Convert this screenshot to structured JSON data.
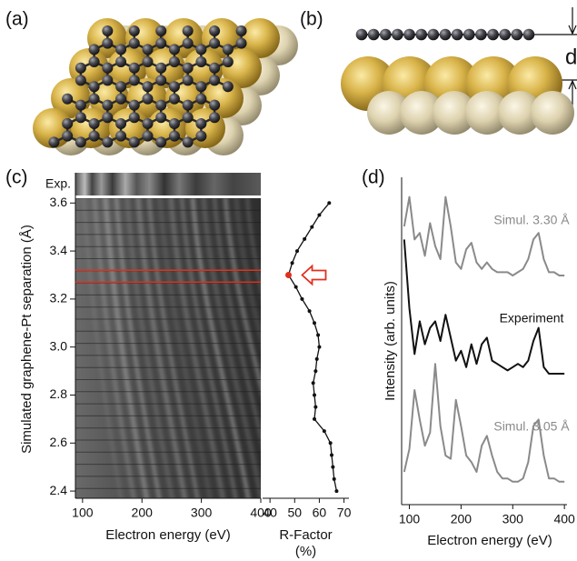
{
  "panels": {
    "a": "(a)",
    "b": "(b)",
    "c": "(c)",
    "d": "(d)"
  },
  "separation_label": "d",
  "chart_data": [
    {
      "type": "heatmap",
      "ylabel": "Simulated graphene-Pt separation (Å)",
      "xlabel": "Electron energy (eV)",
      "row_label": "Exp.",
      "xlim": [
        88,
        400
      ],
      "xticks": [
        100,
        200,
        300,
        400
      ],
      "ylim": [
        2.37,
        3.62
      ],
      "yticks": [
        2.4,
        2.6,
        2.8,
        {
          "value": 3,
          "label": "3.0"
        },
        3.2,
        3.4,
        3.6
      ],
      "marker_lines": [
        3.32,
        3.27
      ],
      "marker_color": "#e0301e"
    },
    {
      "type": "line",
      "xlabel": [
        "R-Factor",
        "(%)"
      ],
      "xlim": [
        37,
        72
      ],
      "xticks": [
        40,
        50,
        60,
        70
      ],
      "ylim": [
        2.37,
        3.62
      ],
      "y": [
        3.6,
        3.55,
        3.5,
        3.45,
        3.4,
        3.35,
        3.3,
        3.25,
        3.2,
        3.15,
        3.1,
        3.05,
        3.0,
        2.95,
        2.9,
        2.85,
        2.8,
        2.75,
        2.7,
        2.65,
        2.6,
        2.55,
        2.5,
        2.45,
        2.4
      ],
      "values": [
        64,
        60,
        57,
        54,
        51,
        49,
        47.5,
        50.5,
        53,
        56,
        58,
        59.5,
        60,
        59,
        58.5,
        57.5,
        58,
        58.5,
        58,
        62,
        64.5,
        65,
        65.5,
        66,
        67
      ],
      "color": "#111111",
      "highlight_color": "#e0301e"
    },
    {
      "type": "spectra",
      "ylabel": "Intensity (arb. units)",
      "xlabel": "Electron energy (eV)",
      "xlim": [
        85,
        405
      ],
      "xticks": [
        100,
        200,
        300,
        400
      ],
      "ylim": [
        0,
        100
      ],
      "x": [
        90,
        100,
        110,
        120,
        130,
        140,
        150,
        160,
        170,
        180,
        190,
        200,
        210,
        220,
        230,
        240,
        250,
        260,
        270,
        280,
        290,
        300,
        310,
        320,
        330,
        340,
        350,
        360,
        370,
        380,
        390,
        400
      ],
      "series": [
        {
          "name": "Simul. 3.30 Å",
          "color": "#8a8a8a",
          "values": [
            85,
            94,
            81,
            83,
            76,
            86,
            79,
            75,
            94,
            85,
            74,
            72,
            78,
            80,
            74,
            72,
            74,
            72,
            71,
            71,
            71,
            70,
            71,
            72,
            75,
            81,
            83,
            75,
            71,
            71,
            70,
            70
          ]
        },
        {
          "name": "Experiment",
          "color": "#111111",
          "values": [
            81,
            60,
            46,
            56,
            49,
            54,
            56,
            50,
            58,
            51,
            44,
            47,
            42,
            49,
            43,
            49,
            51,
            44,
            43,
            42,
            41,
            42,
            43,
            42,
            44,
            50,
            54,
            42,
            40,
            40,
            40,
            40
          ]
        },
        {
          "name": "Simul. 3.05 Å",
          "color": "#8a8a8a",
          "values": [
            10,
            17,
            35,
            26,
            18,
            22,
            43,
            24,
            15,
            14,
            32,
            24,
            15,
            13,
            10,
            18,
            21,
            15,
            10,
            8,
            8,
            7,
            7,
            8,
            13,
            24,
            26,
            15,
            8,
            8,
            7,
            7
          ]
        }
      ]
    }
  ]
}
